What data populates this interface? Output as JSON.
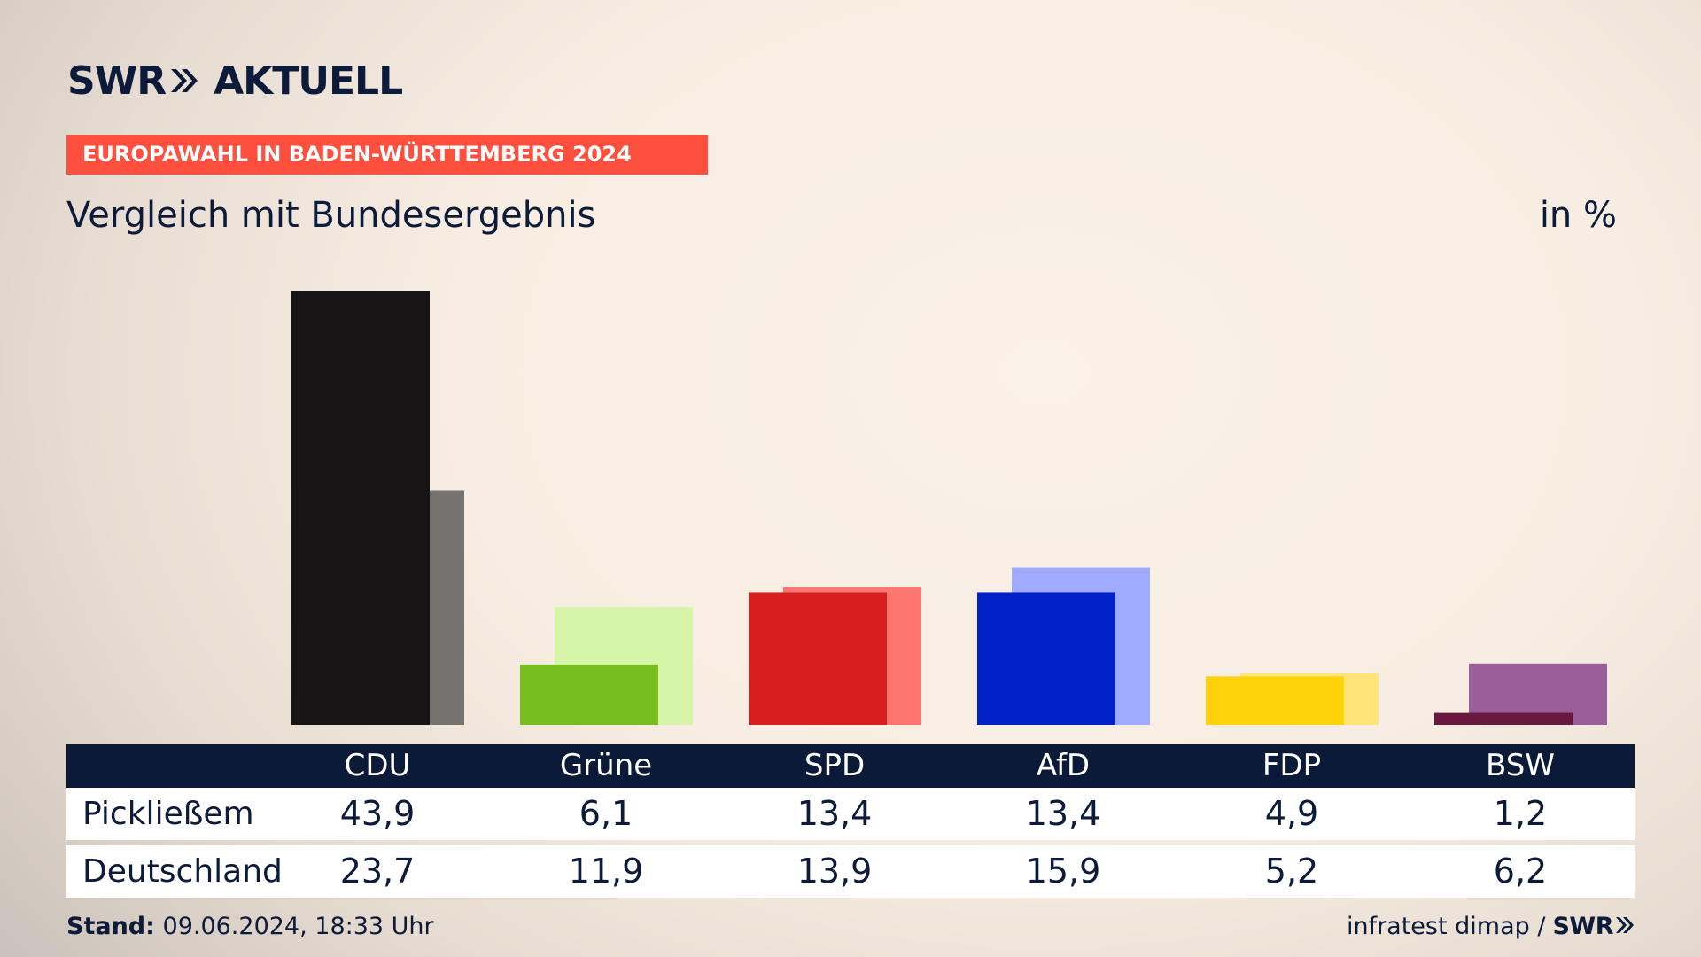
{
  "header": {
    "logo_text": "SWR",
    "logo_suffix": "AKTUELL",
    "kicker": "EUROPAWAHL IN BADEN-WÜRTTEMBERG 2024",
    "subtitle": "Vergleich mit Bundesergebnis",
    "unit": "in %"
  },
  "chart_data": {
    "type": "bar",
    "title": "Vergleich mit Bundesergebnis",
    "ylabel": "in %",
    "categories": [
      "CDU",
      "Grüne",
      "SPD",
      "AfD",
      "FDP",
      "BSW"
    ],
    "ylim": [
      0,
      43.9
    ],
    "grid": false,
    "series": [
      {
        "name": "Pickließem",
        "values": [
          43.9,
          6.1,
          13.4,
          13.4,
          4.9,
          1.2
        ],
        "labels": [
          "43,9",
          "6,1",
          "13,4",
          "13,4",
          "4,9",
          "1,2"
        ],
        "colors": [
          "#161414",
          "#76bd1d",
          "#d71f1f",
          "#0020c8",
          "#ffd20a",
          "#6b1840"
        ]
      },
      {
        "name": "Deutschland",
        "values": [
          23.7,
          11.9,
          13.9,
          15.9,
          5.2,
          6.2
        ],
        "labels": [
          "23,7",
          "11,9",
          "13,9",
          "15,9",
          "5,2",
          "6,2"
        ],
        "colors": [
          "#757370",
          "#d6f5a8",
          "#ff7570",
          "#9eabff",
          "#ffe47a",
          "#9c5e99"
        ]
      }
    ]
  },
  "table": {
    "header_label": ""
  },
  "footer": {
    "stand_label": "Stand:",
    "stand_value": "09.06.2024, 18:33 Uhr",
    "source": "infratest dimap /",
    "brand": "SWR"
  }
}
